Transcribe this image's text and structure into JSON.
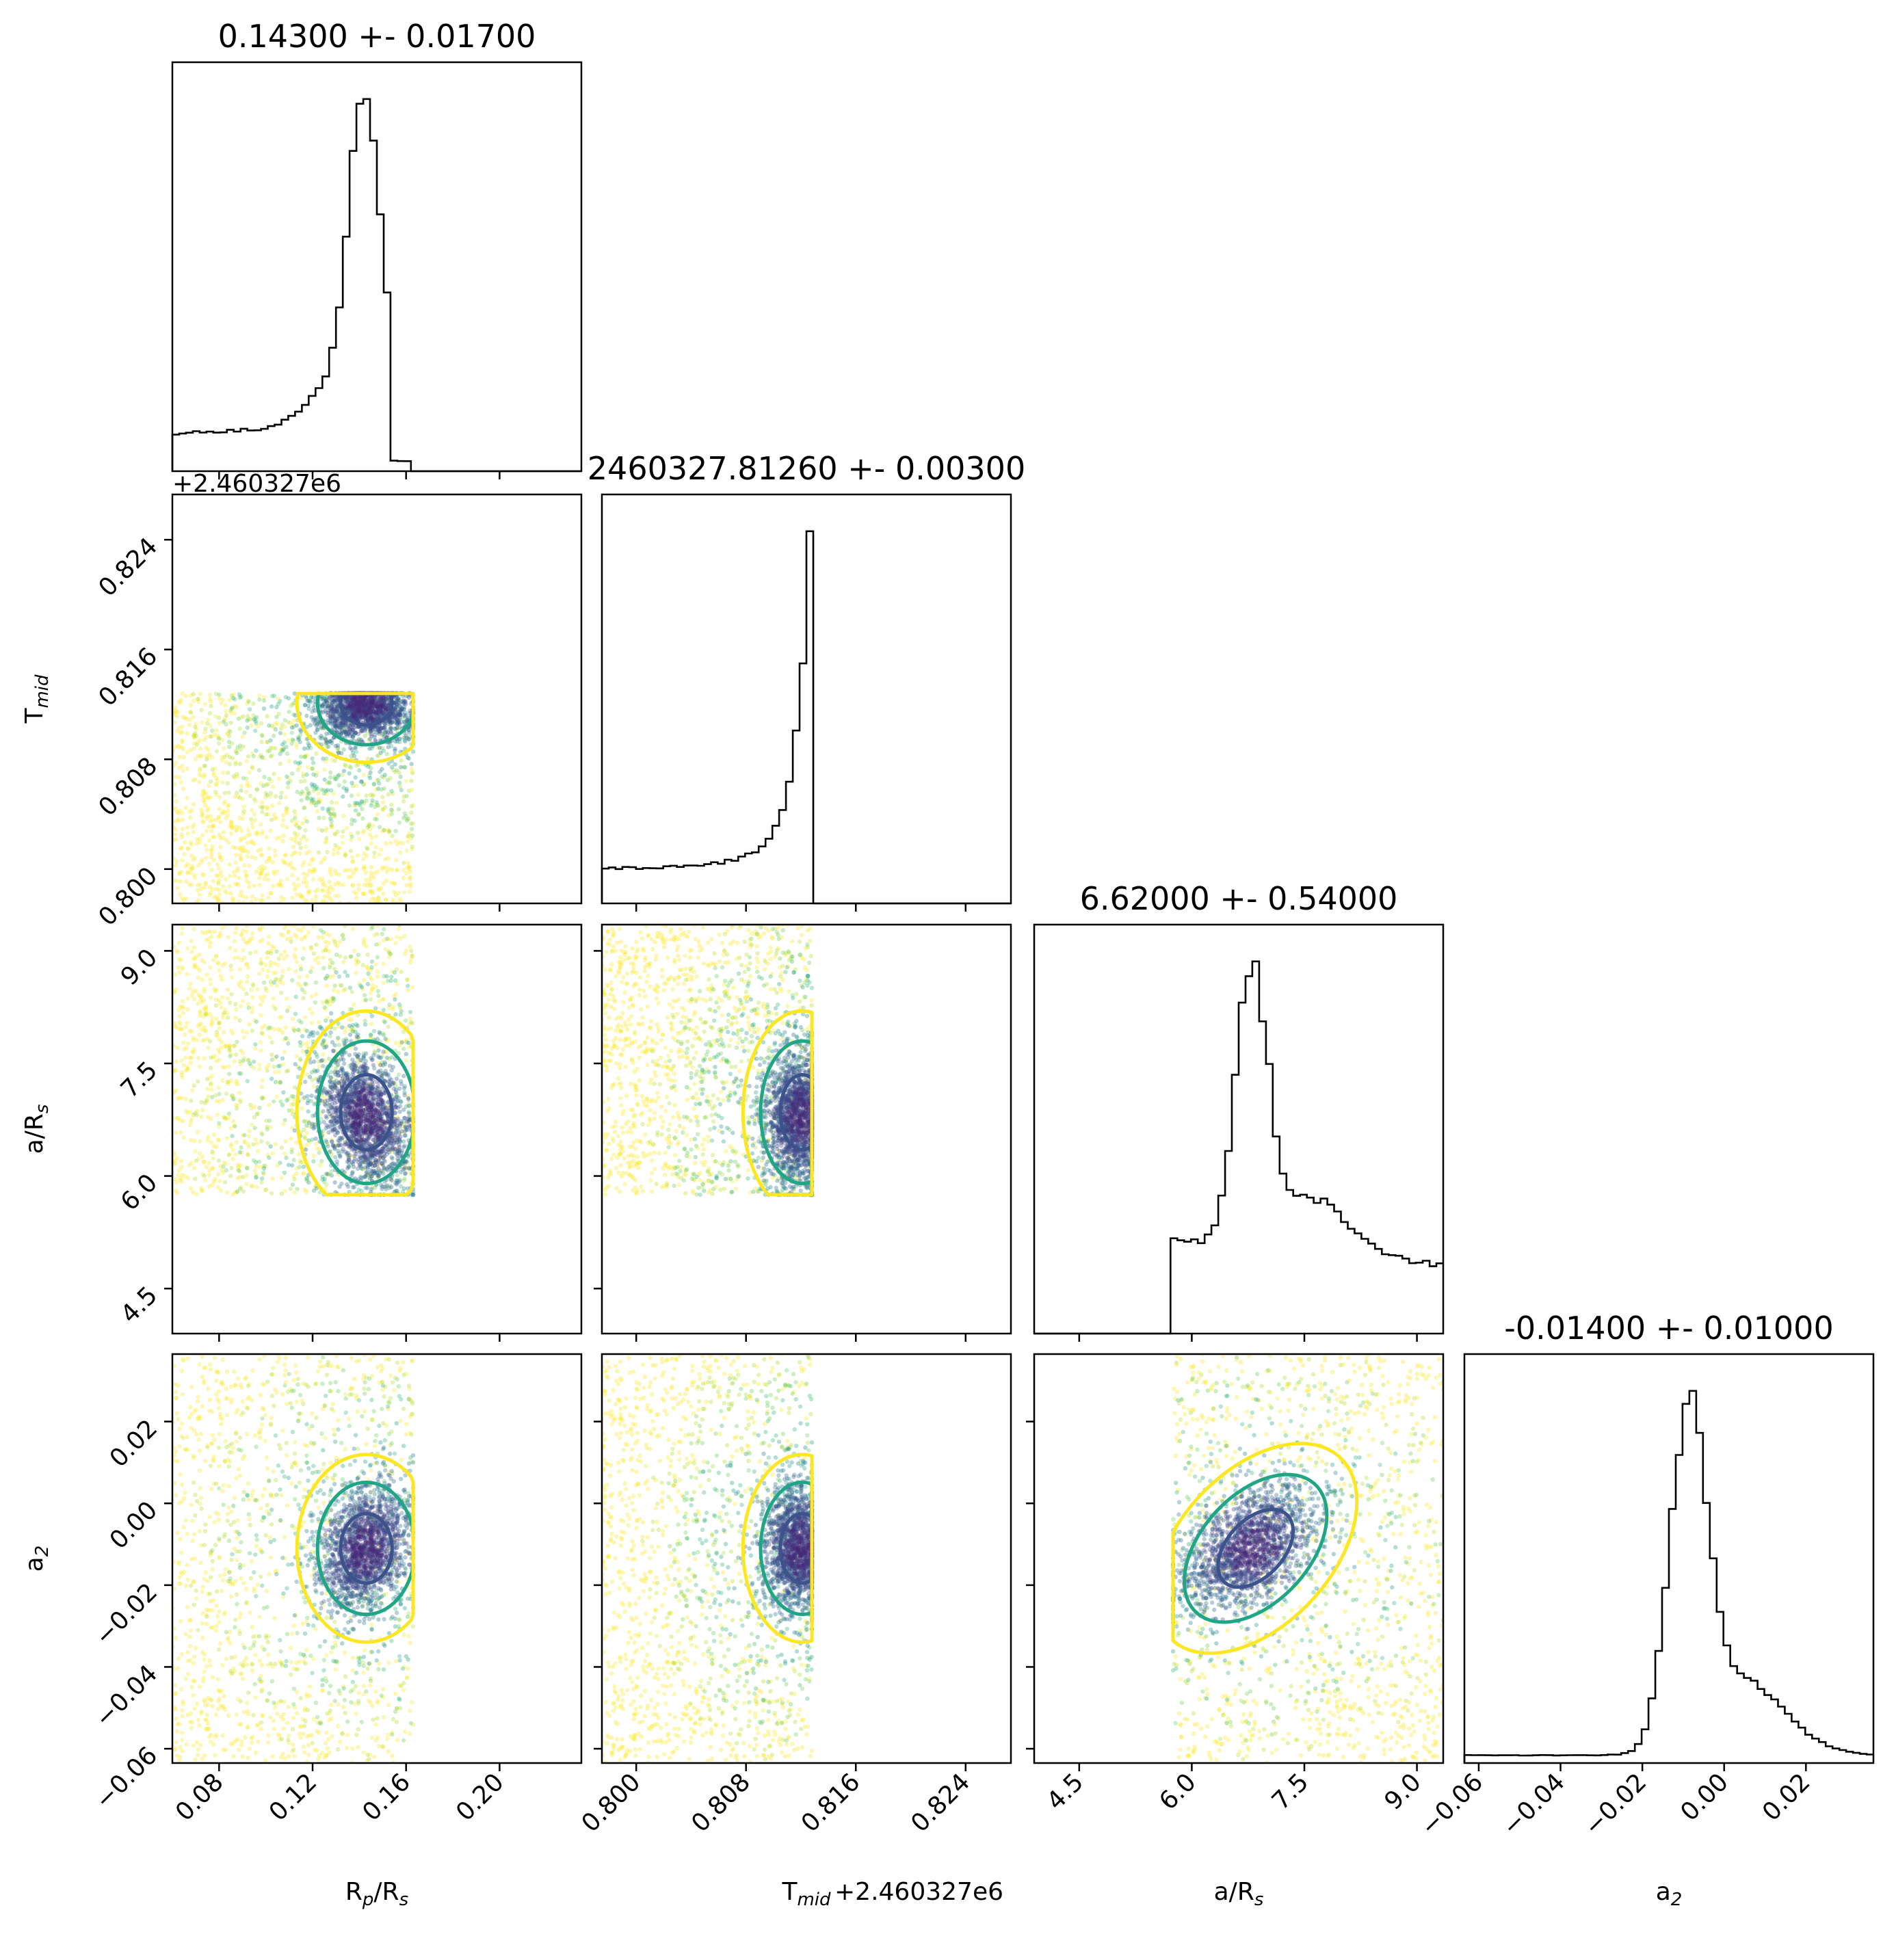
{
  "chart_data": {
    "type": "corner",
    "parameters": [
      {
        "key": "rp",
        "label": "R$_p$/R$_s$",
        "label_html": [
          "R",
          "p",
          "/R",
          "s"
        ],
        "range": [
          0.06,
          0.235
        ],
        "ticks": [
          0.08,
          0.12,
          0.16,
          0.2
        ],
        "tick_labels": [
          "0.08",
          "0.12",
          "0.16",
          "0.20"
        ],
        "title": "0.14300 +- 0.01700"
      },
      {
        "key": "tmid",
        "label_html": [
          "T",
          "mid",
          "",
          ""
        ],
        "offset_text": "+2.460327e6",
        "range": [
          0.7975,
          0.8273
        ],
        "ticks": [
          0.8,
          0.808,
          0.816,
          0.824
        ],
        "tick_labels": [
          "0.800",
          "0.808",
          "0.816",
          "0.824"
        ],
        "title": "2460327.81260 +- 0.00300"
      },
      {
        "key": "ars",
        "label_html": [
          "a/R",
          "s",
          "",
          ""
        ],
        "range": [
          3.9,
          9.35
        ],
        "ticks": [
          4.5,
          6.0,
          7.5,
          9.0
        ],
        "tick_labels": [
          "4.5",
          "6.0",
          "7.5",
          "9.0"
        ],
        "title": "6.62000 +- 0.54000"
      },
      {
        "key": "a2",
        "label_html": [
          "a",
          "2",
          "",
          ""
        ],
        "range": [
          -0.0635,
          0.0365
        ],
        "ticks": [
          -0.06,
          -0.04,
          -0.02,
          0.0,
          0.02
        ],
        "tick_labels": [
          "−0.06",
          "−0.04",
          "−0.02",
          "0.00",
          "0.02"
        ],
        "title": "-0.01400 +- 0.01000"
      }
    ],
    "sample_bounds": {
      "rp": [
        0.06,
        0.163
      ],
      "tmid": [
        0.7975,
        0.8128
      ],
      "ars": [
        5.75,
        9.35
      ],
      "a2": [
        -0.0635,
        0.0365
      ]
    },
    "histograms": {
      "rp": {
        "x": [
          0.06,
          0.148,
          0.1535
        ],
        "heights": [
          0.12,
          0.9,
          0.0
        ],
        "peak": 0.143,
        "fwhm_left": 0.0095,
        "left_floor": 0.12
      },
      "tmid": {
        "peak": 0.8125,
        "cut": 0.8131,
        "left_floor": 0.06
      },
      "ars": {
        "peak": 6.8,
        "cut_low": 5.75,
        "right_tail": 0.2
      },
      "a2": {
        "peak": -0.009,
        "left_floor": 0.02,
        "right_tail": 0.07
      }
    },
    "contour_levels": [
      {
        "name": "inner",
        "color": "#3b528b"
      },
      {
        "name": "middle",
        "color": "#21a685"
      },
      {
        "name": "outer",
        "color": "#fde725"
      }
    ],
    "scatter_colors": [
      "#fde725",
      "#b5de2b",
      "#6ece58",
      "#35b779",
      "#1f9e89",
      "#26828e",
      "#31688e",
      "#3e4989",
      "#482878",
      "#440154"
    ],
    "grid": false,
    "legend": "none"
  }
}
